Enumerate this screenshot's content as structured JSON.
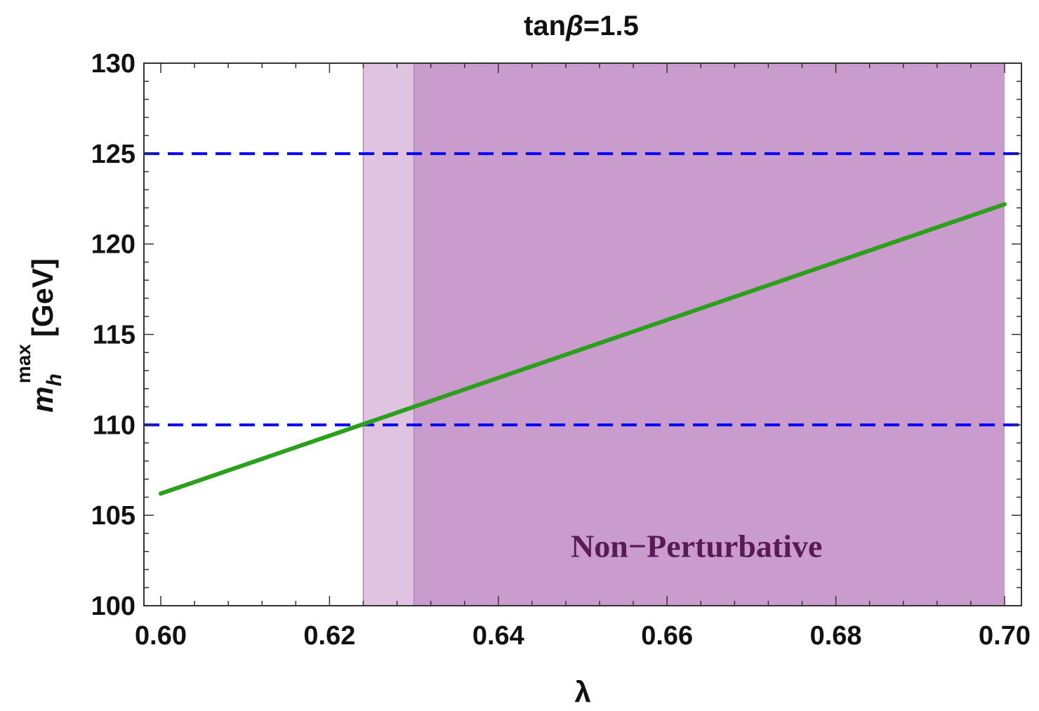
{
  "chart_data": {
    "type": "line",
    "title_prefix": "tan",
    "title_symbol": "β",
    "title_suffix": "=1.5",
    "xlabel": "λ",
    "ylabel_main": "m",
    "ylabel_sub": "h",
    "ylabel_sup": "max",
    "ylabel_unit": "[GeV]",
    "xlim": [
      0.6,
      0.7
    ],
    "ylim": [
      100,
      130
    ],
    "x_ticks": [
      "0.60",
      "0.62",
      "0.64",
      "0.66",
      "0.68",
      "0.70"
    ],
    "y_ticks": [
      "100",
      "105",
      "110",
      "115",
      "120",
      "125",
      "130"
    ],
    "series": [
      {
        "color": "#2ca01c",
        "x": [
          0.6,
          0.7
        ],
        "y": [
          106.2,
          122.2
        ]
      }
    ],
    "reference_lines": [
      {
        "y": 125,
        "color": "#0000ff",
        "style": "dashed"
      },
      {
        "y": 110,
        "color": "#0000ff",
        "style": "dashed"
      }
    ],
    "regions": [
      {
        "x0": 0.624,
        "x1": 0.63,
        "color": "#dfc3e0"
      },
      {
        "x0": 0.63,
        "x1": 0.7,
        "color": "#c99ccd"
      }
    ],
    "region_label": "Non−Perturbative",
    "region_label_position": {
      "x": 0.6635,
      "y": 102.7
    },
    "grid": false
  }
}
